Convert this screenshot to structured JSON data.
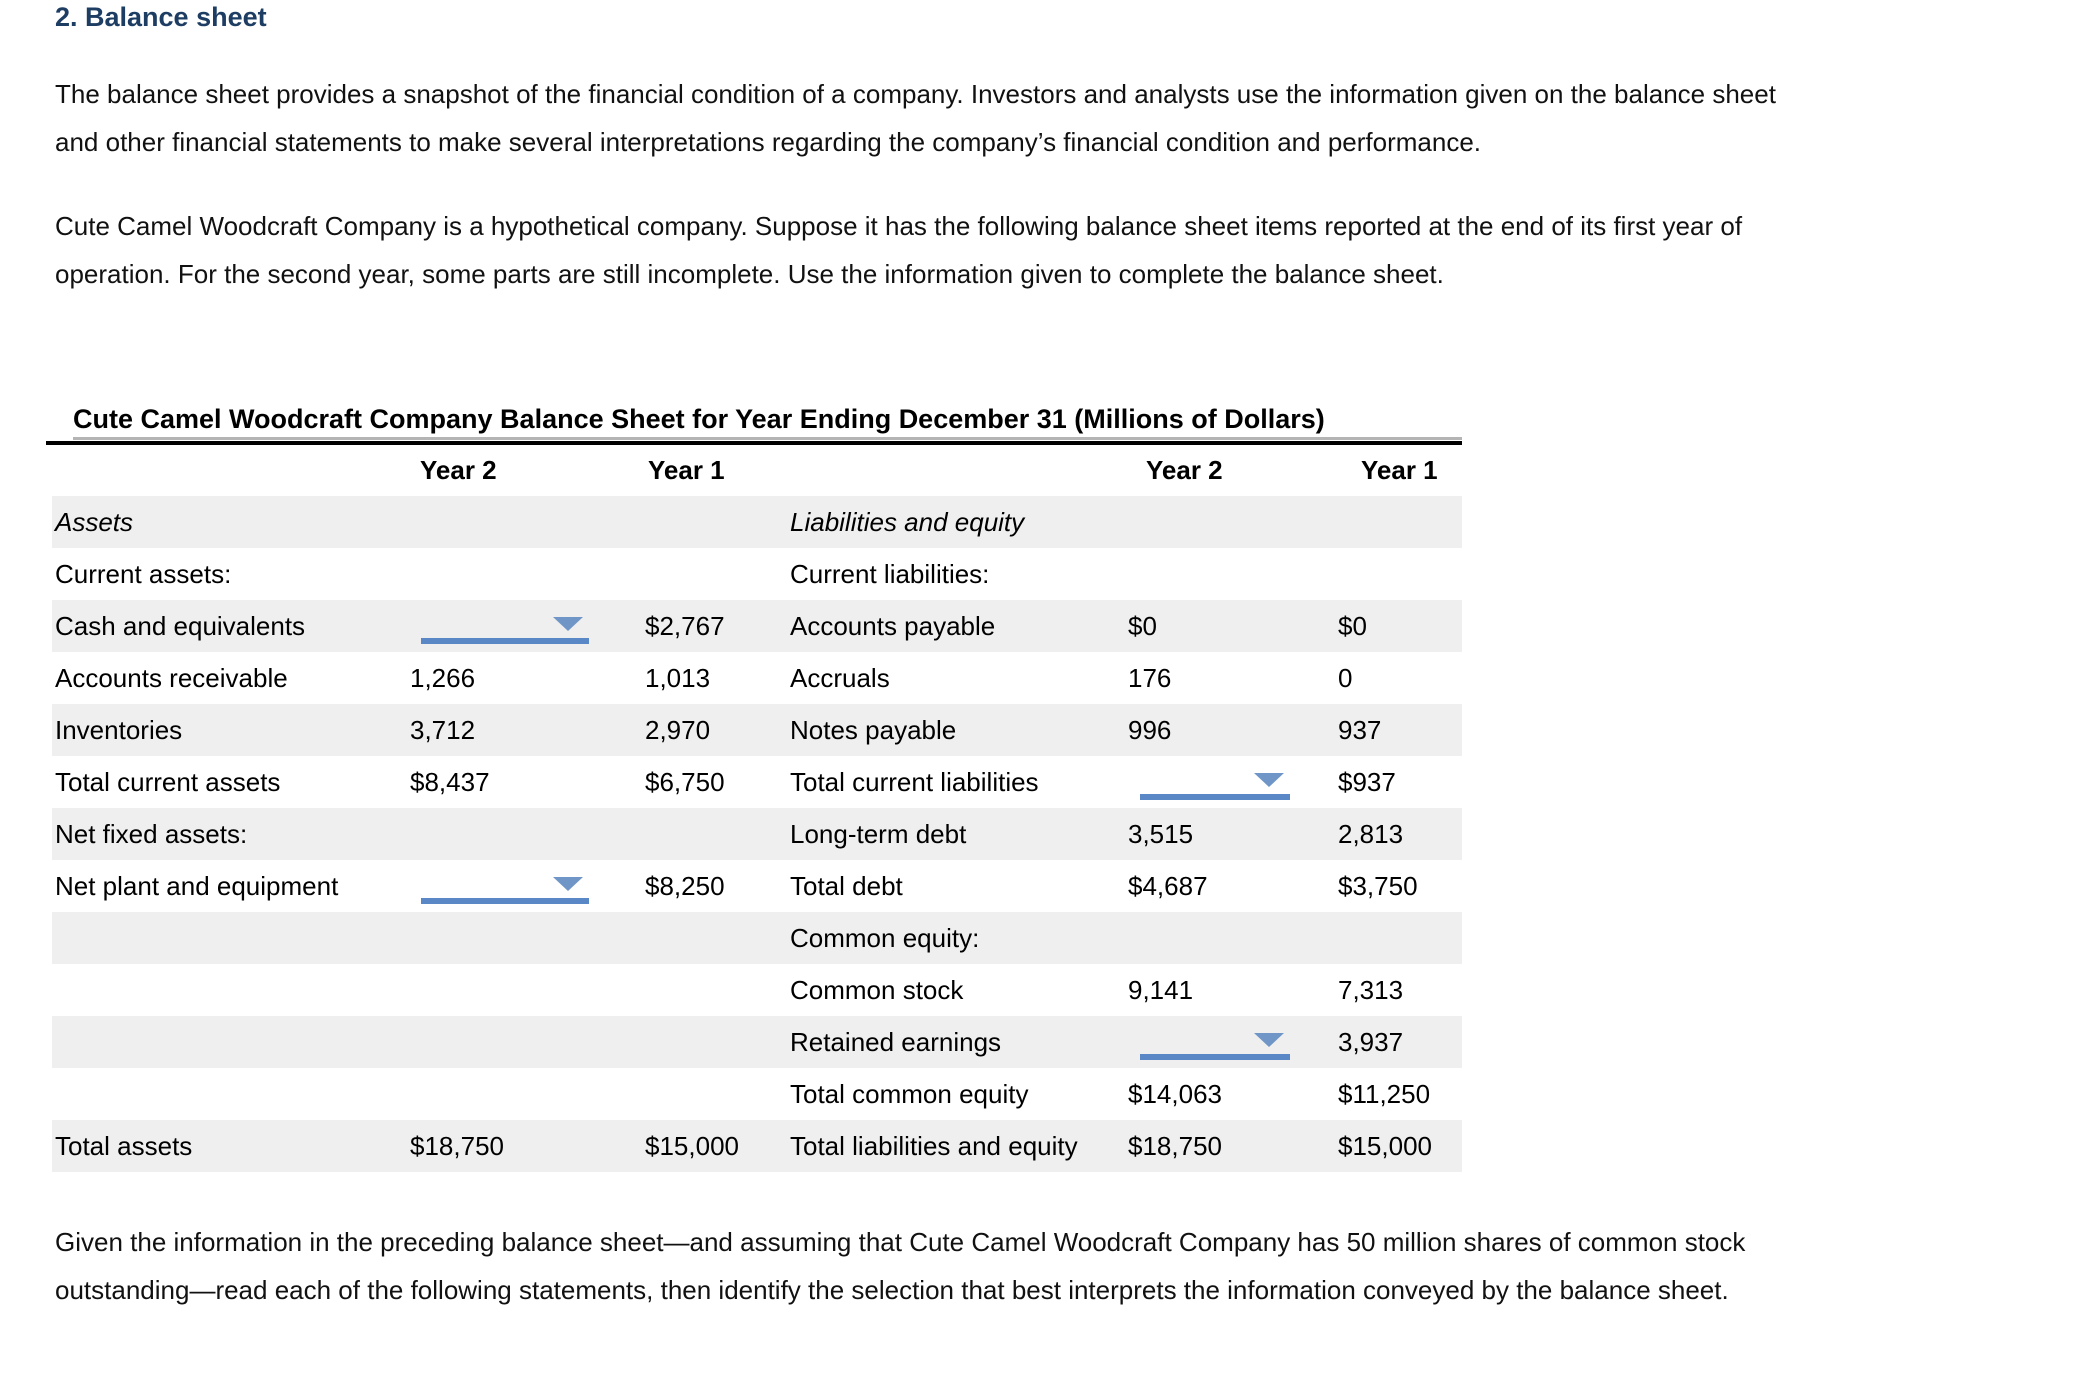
{
  "heading": "2. Balance sheet",
  "paragraphs": {
    "intro": {
      "line1": "The balance sheet provides a snapshot of the financial condition of a company. Investors and analysts use the information given on the balance sheet",
      "line2": "and other financial statements to make several interpretations regarding the company’s financial condition and performance."
    },
    "scenario": {
      "line1": "Cute Camel Woodcraft Company is a hypothetical company. Suppose it has the following balance sheet items reported at the end of its first year of",
      "line2": "operation. For the second year, some parts are still incomplete. Use the information given to complete the balance sheet."
    },
    "question": {
      "line1": "Given the information in the preceding balance sheet—and assuming that Cute Camel Woodcraft Company has 50 million shares of common stock",
      "line2": "outstanding—read each of the following statements, then identify the selection that best interprets the information conveyed by the balance sheet."
    }
  },
  "table": {
    "title": "Cute Camel Woodcraft Company Balance Sheet for Year Ending December 31 (Millions of Dollars)",
    "col_headers": [
      "Year 2",
      "Year 1",
      "Year 2",
      "Year 1"
    ],
    "colors": {
      "heading_navy": "#1e3d63",
      "shaded_row": "#efefef",
      "dropdown_line_blue": "#5a87c5",
      "dropdown_triangle_blue": "#6f96c6"
    },
    "rows": [
      {
        "left_label": "Assets",
        "right_label": "Liabilities and equity",
        "italic": true,
        "shaded": true
      },
      {
        "left_label": "Current assets:",
        "right_label": "Current liabilities:"
      },
      {
        "left_label": "Cash and equivalents",
        "left_y2": {
          "dropdown": true
        },
        "left_y1": "$2,767",
        "right_label": "Accounts payable",
        "right_y2": "$0",
        "right_y1": "$0",
        "shaded": true
      },
      {
        "left_label": "Accounts receivable",
        "left_y2": "1,266",
        "left_y1": "1,013",
        "right_label": "Accruals",
        "right_y2": "176",
        "right_y1": "0"
      },
      {
        "left_label": "Inventories",
        "left_y2": "3,712",
        "left_y1": "2,970",
        "right_label": "Notes payable",
        "right_y2": "996",
        "right_y1": "937",
        "shaded": true
      },
      {
        "left_label": "Total current assets",
        "left_y2": "$8,437",
        "left_y1": "$6,750",
        "right_label": "Total current liabilities",
        "right_y2": {
          "dropdown": true
        },
        "right_y1": "$937"
      },
      {
        "left_label": "Net fixed assets:",
        "right_label": "Long-term debt",
        "right_y2": "3,515",
        "right_y1": "2,813",
        "shaded": true
      },
      {
        "left_label": "Net plant and equipment",
        "left_y2": {
          "dropdown": true
        },
        "left_y1": "$8,250",
        "right_label": "Total debt",
        "right_y2": "$4,687",
        "right_y1": "$3,750"
      },
      {
        "right_label": "Common equity:",
        "shaded": true
      },
      {
        "right_label": "Common stock",
        "right_y2": "9,141",
        "right_y1": "7,313"
      },
      {
        "right_label": "Retained earnings",
        "right_y2": {
          "dropdown": true
        },
        "right_y1": "3,937",
        "shaded": true
      },
      {
        "right_label": "Total common equity",
        "right_y2": "$14,063",
        "right_y1": "$11,250"
      },
      {
        "left_label": "Total assets",
        "left_y2": "$18,750",
        "left_y1": "$15,000",
        "right_label": "Total liabilities and equity",
        "right_y2": "$18,750",
        "right_y1": "$15,000",
        "shaded": true
      }
    ]
  }
}
